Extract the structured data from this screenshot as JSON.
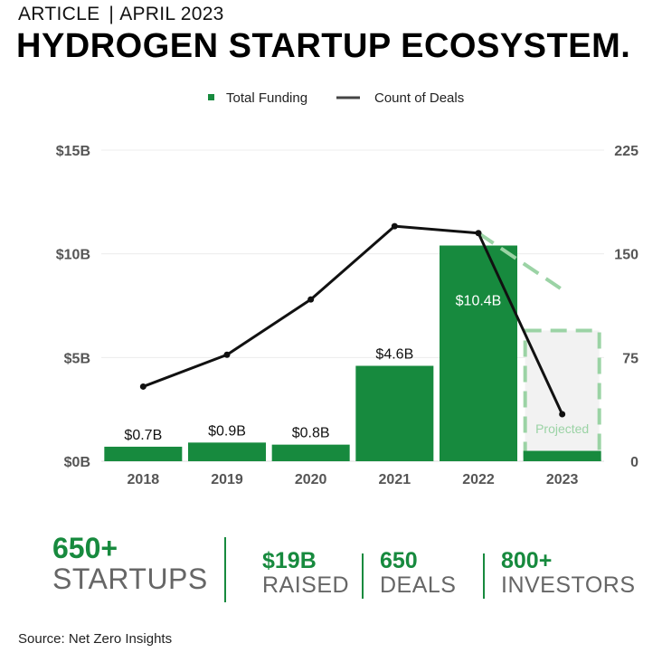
{
  "header": {
    "kicker_left": "ARTICLE",
    "kicker_sep": "|",
    "kicker_right": "APRIL 2023",
    "title": "HYDROGEN STARTUP ECOSYSTEM."
  },
  "chart_data": {
    "type": "bar",
    "title": "",
    "legend": {
      "placement": "top-center",
      "entries": [
        "Total Funding",
        "Count of Deals"
      ]
    },
    "categories": [
      "2018",
      "2019",
      "2020",
      "2021",
      "2022",
      "2023"
    ],
    "series": [
      {
        "name": "Total Funding",
        "type": "bar",
        "axis": "left",
        "values": [
          0.7,
          0.9,
          0.8,
          4.6,
          10.4,
          0.5
        ],
        "labels": [
          "$0.7B",
          "$0.9B",
          "$0.8B",
          "$4.6B",
          "$10.4B",
          ""
        ]
      },
      {
        "name": "Count of Deals",
        "type": "line",
        "axis": "right",
        "values": [
          54,
          77,
          117,
          170,
          165,
          34
        ]
      }
    ],
    "projection": {
      "category": "2023",
      "funding_value": 6.3,
      "label": "Projected",
      "deals_start": 165,
      "deals_end": 125
    },
    "y_left": {
      "min": 0,
      "max": 15,
      "ticks": [
        0,
        5,
        10,
        15
      ],
      "tick_labels": [
        "$0B",
        "$5B",
        "$10B",
        "$15B"
      ]
    },
    "y_right": {
      "min": 0,
      "max": 225,
      "ticks": [
        0,
        75,
        150,
        225
      ],
      "tick_labels": [
        "0",
        "75",
        "150",
        "225"
      ]
    },
    "grid": true,
    "colors": {
      "bar": "#178a3e",
      "line": "#111111",
      "projection": "#9bd3a5",
      "projection_fill": "#f2f2f2"
    }
  },
  "stats": [
    {
      "number": "650+",
      "label": "STARTUPS"
    },
    {
      "number": "$19B",
      "label": "RAISED"
    },
    {
      "number": "650",
      "label": "DEALS"
    },
    {
      "number": "800+",
      "label": "INVESTORS"
    }
  ],
  "source": "Source: Net Zero Insights"
}
